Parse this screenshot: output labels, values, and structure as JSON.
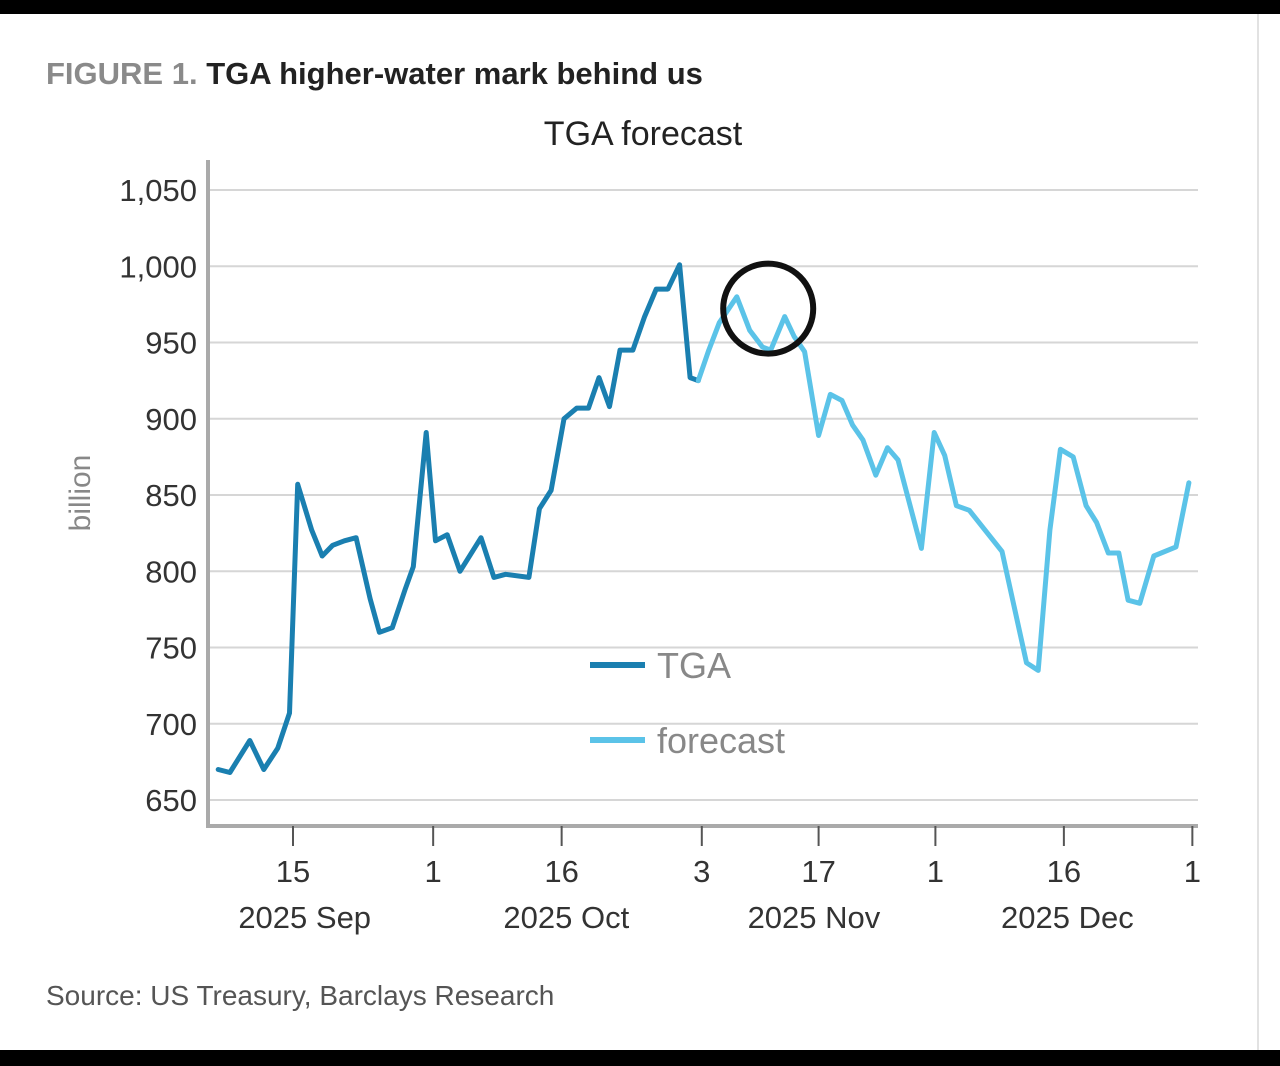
{
  "figure_label": "FIGURE 1.",
  "figure_title": "TGA higher-water mark behind us",
  "source": "Source: US Treasury, Barclays Research",
  "chart_data": {
    "type": "line",
    "title": "TGA forecast",
    "xlabel": "",
    "ylabel": "billion",
    "x_units": "business days from 2025 Sep 15",
    "ylim": [
      650,
      1050
    ],
    "yticks": [
      650,
      700,
      750,
      800,
      850,
      900,
      950,
      1000,
      1050
    ],
    "ytick_labels": [
      "650",
      "700",
      "750",
      "800",
      "850",
      "900",
      "950",
      "1,000",
      "1,050"
    ],
    "grid": true,
    "xticks": [
      {
        "x": 0,
        "day": "15",
        "month": "2025 Sep"
      },
      {
        "x": 12,
        "day": "1",
        "month": ""
      },
      {
        "x": 23,
        "day": "16",
        "month": "2025 Oct"
      },
      {
        "x": 35,
        "day": "3",
        "month": ""
      },
      {
        "x": 45,
        "day": "17",
        "month": "2025 Nov"
      },
      {
        "x": 55,
        "day": "1",
        "month": ""
      },
      {
        "x": 66,
        "day": "16",
        "month": "2025 Dec"
      },
      {
        "x": 77,
        "day": "1",
        "month": ""
      }
    ],
    "month_labels": [
      {
        "x": 1,
        "label": "2025 Sep"
      },
      {
        "x": 23.4,
        "label": "2025 Oct"
      },
      {
        "x": 44.6,
        "label": "2025 Nov"
      },
      {
        "x": 66.3,
        "label": "2025 Dec"
      }
    ],
    "legend_position": "center",
    "series": [
      {
        "name": "TGA",
        "color": "#1a7fb0",
        "x": [
          -6.4,
          -5.4,
          -3.7,
          -2.5,
          -1.3,
          -0.3,
          0.4,
          1.6,
          2.5,
          3.4,
          4.4,
          5.4,
          6.6,
          7.4,
          8.5,
          9.6,
          10.3,
          11.4,
          12.2,
          13.2,
          14.3,
          16.1,
          17.2,
          18.2,
          20.2,
          21.1,
          22.1,
          23.2,
          24.3,
          25.3,
          26.2,
          27.1,
          28.0,
          29.1,
          30.1,
          31.1,
          32.1,
          33.1,
          34.0,
          34.7
        ],
        "y": [
          670,
          668,
          689,
          670,
          684,
          707,
          857,
          827,
          810,
          817,
          820,
          822,
          782,
          760,
          763,
          788,
          803,
          891,
          820,
          824,
          800,
          822,
          796,
          798,
          796,
          841,
          853,
          900,
          907,
          907,
          927,
          908,
          945,
          945,
          967,
          985,
          985,
          1001,
          927,
          925
        ]
      },
      {
        "name": "forecast",
        "color": "#5bc3e8",
        "x": [
          34.7,
          35.6,
          36.5,
          38.0,
          39.1,
          40.2,
          40.9,
          42.1,
          42.9,
          43.8,
          45.0,
          46.0,
          47.0,
          47.9,
          48.8,
          49.9,
          50.9,
          51.8,
          53.8,
          54.9,
          55.8,
          56.8,
          57.9,
          60.7,
          62.8,
          63.8,
          64.8,
          65.7,
          66.8,
          67.9,
          68.8,
          69.8,
          70.7,
          71.5,
          72.5,
          73.7,
          75.6,
          76.7
        ],
        "y": [
          925,
          945,
          963,
          980,
          958,
          947,
          945,
          967,
          954,
          944,
          889,
          916,
          912,
          896,
          886,
          863,
          881,
          873,
          815,
          891,
          876,
          843,
          840,
          813,
          740,
          735,
          827,
          880,
          875,
          843,
          832,
          812,
          812,
          781,
          779,
          810,
          816,
          858
        ]
      }
    ],
    "annotations": [
      {
        "type": "circle",
        "x": 40.6,
        "y": 967
      }
    ]
  }
}
